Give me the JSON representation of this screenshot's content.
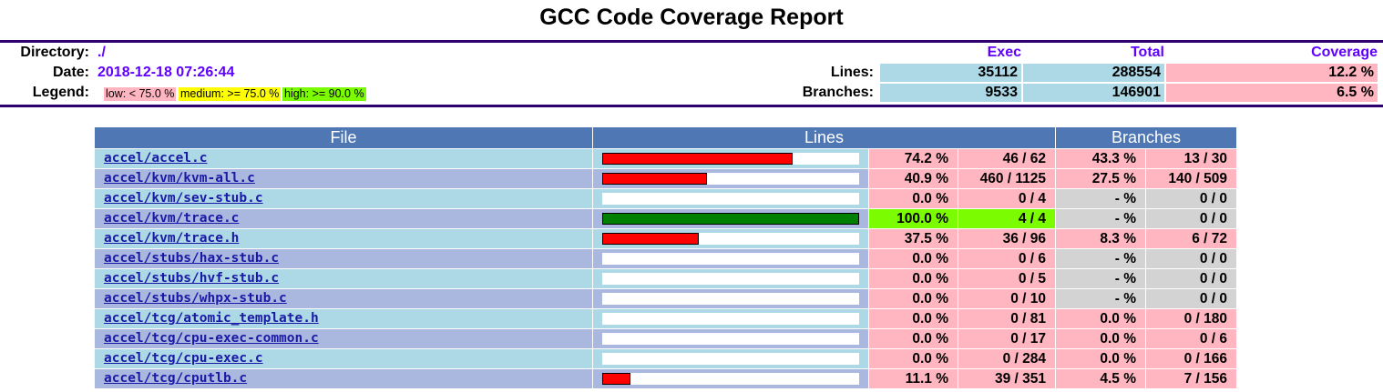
{
  "title": "GCC Code Coverage Report",
  "header": {
    "directory_label": "Directory:",
    "directory": "./",
    "date_label": "Date:",
    "date": "2018-12-18 07:26:44",
    "legend_label": "Legend:",
    "legend": {
      "low": "low: < 75.0 %",
      "medium": "medium: >= 75.0 %",
      "high": "high: >= 90.0 %"
    },
    "col_exec": "Exec",
    "col_total": "Total",
    "col_coverage": "Coverage",
    "lines_label": "Lines:",
    "lines_exec": "35112",
    "lines_total": "288554",
    "lines_coverage": "12.2 %",
    "branches_label": "Branches:",
    "branches_exec": "9533",
    "branches_total": "146901",
    "branches_coverage": "6.5 %"
  },
  "colors": {
    "low": "#ffb6c1",
    "medium": "#ffff00",
    "high": "#7cfc00",
    "none": "#d3d3d3",
    "row_a": "#add8e6",
    "row_b": "#aab8e0",
    "header_blue": "#4f77b4",
    "bar_red": "#ff0000",
    "bar_green": "#008000"
  },
  "table": {
    "headers": {
      "file": "File",
      "lines": "Lines",
      "branches": "Branches"
    },
    "rows": [
      {
        "file": "accel/accel.c",
        "line_pct": "74.2 %",
        "line_frac": "46 / 62",
        "branch_pct": "43.3 %",
        "branch_frac": "13 / 30",
        "coverage": 0.742,
        "line_level": "low",
        "branch_level": "low"
      },
      {
        "file": "accel/kvm/kvm-all.c",
        "line_pct": "40.9 %",
        "line_frac": "460 / 1125",
        "branch_pct": "27.5 %",
        "branch_frac": "140 / 509",
        "coverage": 0.409,
        "line_level": "low",
        "branch_level": "low"
      },
      {
        "file": "accel/kvm/sev-stub.c",
        "line_pct": "0.0 %",
        "line_frac": "0 / 4",
        "branch_pct": "- %",
        "branch_frac": "0 / 0",
        "coverage": 0.0,
        "line_level": "low",
        "branch_level": "none"
      },
      {
        "file": "accel/kvm/trace.c",
        "line_pct": "100.0 %",
        "line_frac": "4 / 4",
        "branch_pct": "- %",
        "branch_frac": "0 / 0",
        "coverage": 1.0,
        "line_level": "high",
        "branch_level": "none"
      },
      {
        "file": "accel/kvm/trace.h",
        "line_pct": "37.5 %",
        "line_frac": "36 / 96",
        "branch_pct": "8.3 %",
        "branch_frac": "6 / 72",
        "coverage": 0.375,
        "line_level": "low",
        "branch_level": "low"
      },
      {
        "file": "accel/stubs/hax-stub.c",
        "line_pct": "0.0 %",
        "line_frac": "0 / 6",
        "branch_pct": "- %",
        "branch_frac": "0 / 0",
        "coverage": 0.0,
        "line_level": "low",
        "branch_level": "none"
      },
      {
        "file": "accel/stubs/hvf-stub.c",
        "line_pct": "0.0 %",
        "line_frac": "0 / 5",
        "branch_pct": "- %",
        "branch_frac": "0 / 0",
        "coverage": 0.0,
        "line_level": "low",
        "branch_level": "none"
      },
      {
        "file": "accel/stubs/whpx-stub.c",
        "line_pct": "0.0 %",
        "line_frac": "0 / 10",
        "branch_pct": "- %",
        "branch_frac": "0 / 0",
        "coverage": 0.0,
        "line_level": "low",
        "branch_level": "none"
      },
      {
        "file": "accel/tcg/atomic_template.h",
        "line_pct": "0.0 %",
        "line_frac": "0 / 81",
        "branch_pct": "0.0 %",
        "branch_frac": "0 / 180",
        "coverage": 0.0,
        "line_level": "low",
        "branch_level": "low"
      },
      {
        "file": "accel/tcg/cpu-exec-common.c",
        "line_pct": "0.0 %",
        "line_frac": "0 / 17",
        "branch_pct": "0.0 %",
        "branch_frac": "0 / 6",
        "coverage": 0.0,
        "line_level": "low",
        "branch_level": "low"
      },
      {
        "file": "accel/tcg/cpu-exec.c",
        "line_pct": "0.0 %",
        "line_frac": "0 / 284",
        "branch_pct": "0.0 %",
        "branch_frac": "0 / 166",
        "coverage": 0.0,
        "line_level": "low",
        "branch_level": "low"
      },
      {
        "file": "accel/tcg/cputlb.c",
        "line_pct": "11.1 %",
        "line_frac": "39 / 351",
        "branch_pct": "4.5 %",
        "branch_frac": "7 / 156",
        "coverage": 0.111,
        "line_level": "low",
        "branch_level": "low"
      }
    ]
  }
}
